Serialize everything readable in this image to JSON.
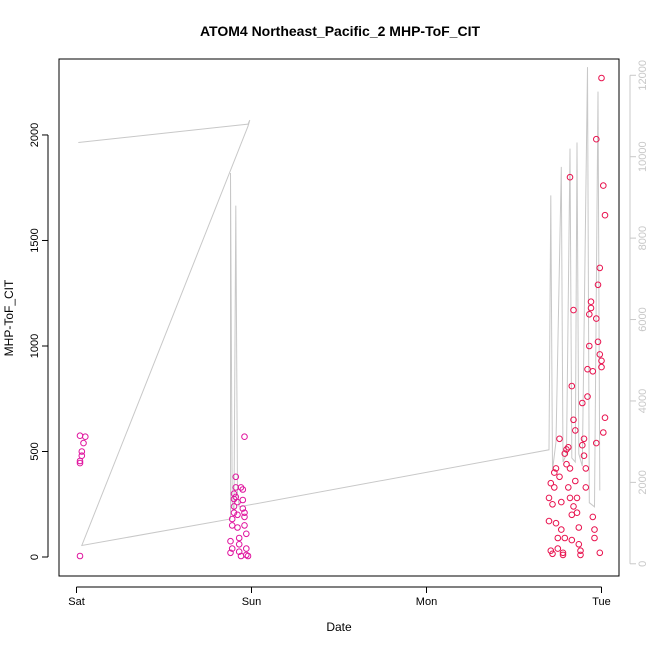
{
  "chart_data": {
    "type": "scatter",
    "title": "ATOM4 Northeast_Pacific_2 MHP-ToF_CIT",
    "xlabel": "Date",
    "ylabel": "MHP-ToF_CIT",
    "x_ticks": [
      "Sat",
      "Sun",
      "Mon",
      "Tue"
    ],
    "x_unit": "days",
    "xlim": [
      -0.1,
      3.1
    ],
    "ylim": [
      -90,
      2360
    ],
    "y_ticks": [
      0,
      500,
      1000,
      1500,
      2000
    ],
    "y2_ticks": [
      0,
      2000,
      4000,
      6000,
      8000,
      10000,
      12000
    ],
    "y2lim": [
      -300,
      12400
    ],
    "grid": false,
    "series": [
      {
        "color": "#e0149e",
        "points": [
          [
            0.02,
            5
          ],
          [
            0.02,
            445
          ],
          [
            0.02,
            455
          ],
          [
            0.03,
            480
          ],
          [
            0.03,
            500
          ],
          [
            0.04,
            540
          ],
          [
            0.02,
            575
          ],
          [
            0.05,
            570
          ],
          [
            0.88,
            20
          ],
          [
            0.88,
            75
          ],
          [
            0.89,
            40
          ],
          [
            0.89,
            150
          ],
          [
            0.89,
            180
          ],
          [
            0.9,
            210
          ],
          [
            0.9,
            240
          ],
          [
            0.9,
            275
          ],
          [
            0.9,
            300
          ],
          [
            0.91,
            285
          ],
          [
            0.91,
            330
          ],
          [
            0.91,
            380
          ],
          [
            0.92,
            260
          ],
          [
            0.92,
            200
          ],
          [
            0.92,
            140
          ],
          [
            0.93,
            90
          ],
          [
            0.93,
            60
          ],
          [
            0.93,
            25
          ],
          [
            0.94,
            5
          ],
          [
            0.94,
            330
          ],
          [
            0.95,
            320
          ],
          [
            0.95,
            270
          ],
          [
            0.95,
            230
          ],
          [
            0.96,
            210
          ],
          [
            0.96,
            190
          ],
          [
            0.96,
            150
          ],
          [
            0.97,
            110
          ],
          [
            0.97,
            40
          ],
          [
            0.97,
            10
          ],
          [
            0.98,
            5
          ],
          [
            0.96,
            570
          ]
        ]
      },
      {
        "color": "#e8124e",
        "points": [
          [
            2.7,
            170
          ],
          [
            2.7,
            280
          ],
          [
            2.71,
            350
          ],
          [
            2.71,
            30
          ],
          [
            2.72,
            15
          ],
          [
            2.72,
            250
          ],
          [
            2.73,
            330
          ],
          [
            2.73,
            400
          ],
          [
            2.74,
            160
          ],
          [
            2.74,
            420
          ],
          [
            2.75,
            90
          ],
          [
            2.75,
            40
          ],
          [
            2.76,
            560
          ],
          [
            2.76,
            380
          ],
          [
            2.77,
            260
          ],
          [
            2.77,
            130
          ],
          [
            2.78,
            20
          ],
          [
            2.78,
            10
          ],
          [
            2.79,
            90
          ],
          [
            2.79,
            490
          ],
          [
            2.8,
            510
          ],
          [
            2.8,
            440
          ],
          [
            2.81,
            520
          ],
          [
            2.81,
            330
          ],
          [
            2.82,
            280
          ],
          [
            2.82,
            420
          ],
          [
            2.83,
            200
          ],
          [
            2.83,
            80
          ],
          [
            2.84,
            240
          ],
          [
            2.84,
            650
          ],
          [
            2.85,
            600
          ],
          [
            2.85,
            360
          ],
          [
            2.86,
            280
          ],
          [
            2.86,
            210
          ],
          [
            2.87,
            140
          ],
          [
            2.87,
            60
          ],
          [
            2.88,
            30
          ],
          [
            2.88,
            10
          ],
          [
            2.89,
            730
          ],
          [
            2.89,
            530
          ],
          [
            2.9,
            560
          ],
          [
            2.9,
            480
          ],
          [
            2.91,
            420
          ],
          [
            2.91,
            330
          ],
          [
            2.92,
            760
          ],
          [
            2.92,
            890
          ],
          [
            2.93,
            1000
          ],
          [
            2.93,
            1150
          ],
          [
            2.94,
            1180
          ],
          [
            2.94,
            1210
          ],
          [
            2.95,
            880
          ],
          [
            2.95,
            190
          ],
          [
            2.96,
            130
          ],
          [
            2.96,
            90
          ],
          [
            2.97,
            540
          ],
          [
            2.97,
            1130
          ],
          [
            2.98,
            1020
          ],
          [
            2.98,
            1290
          ],
          [
            2.99,
            1370
          ],
          [
            2.99,
            960
          ],
          [
            3.0,
            930
          ],
          [
            3.0,
            900
          ],
          [
            3.01,
            1760
          ],
          [
            3.01,
            590
          ],
          [
            3.02,
            660
          ],
          [
            3.02,
            1620
          ],
          [
            3.0,
            2270
          ],
          [
            2.97,
            1980
          ],
          [
            2.82,
            1800
          ],
          [
            2.84,
            1170
          ],
          [
            2.83,
            810
          ],
          [
            2.99,
            20
          ]
        ]
      }
    ],
    "line_series": {
      "color": "#c8c8c8",
      "axis": "right",
      "points": [
        [
          0.01,
          10350
        ],
        [
          0.98,
          10800
        ],
        [
          0.99,
          10900
        ],
        [
          0.98,
          10750
        ],
        [
          0.03,
          450
        ],
        [
          0.88,
          1100
        ],
        [
          0.88,
          9600
        ],
        [
          0.89,
          1500
        ],
        [
          0.9,
          1300
        ],
        [
          0.91,
          8800
        ],
        [
          0.92,
          1700
        ],
        [
          0.93,
          1400
        ],
        [
          2.7,
          2800
        ],
        [
          2.71,
          9050
        ],
        [
          2.72,
          2300
        ],
        [
          2.74,
          3000
        ],
        [
          2.77,
          9750
        ],
        [
          2.78,
          2500
        ],
        [
          2.8,
          2700
        ],
        [
          2.82,
          10200
        ],
        [
          2.83,
          2600
        ],
        [
          2.85,
          2500
        ],
        [
          2.86,
          10350
        ],
        [
          2.87,
          2700
        ],
        [
          2.89,
          2400
        ],
        [
          2.92,
          12200
        ],
        [
          2.93,
          1500
        ],
        [
          2.96,
          1400
        ],
        [
          2.98,
          11600
        ],
        [
          2.99,
          1800
        ]
      ]
    }
  }
}
